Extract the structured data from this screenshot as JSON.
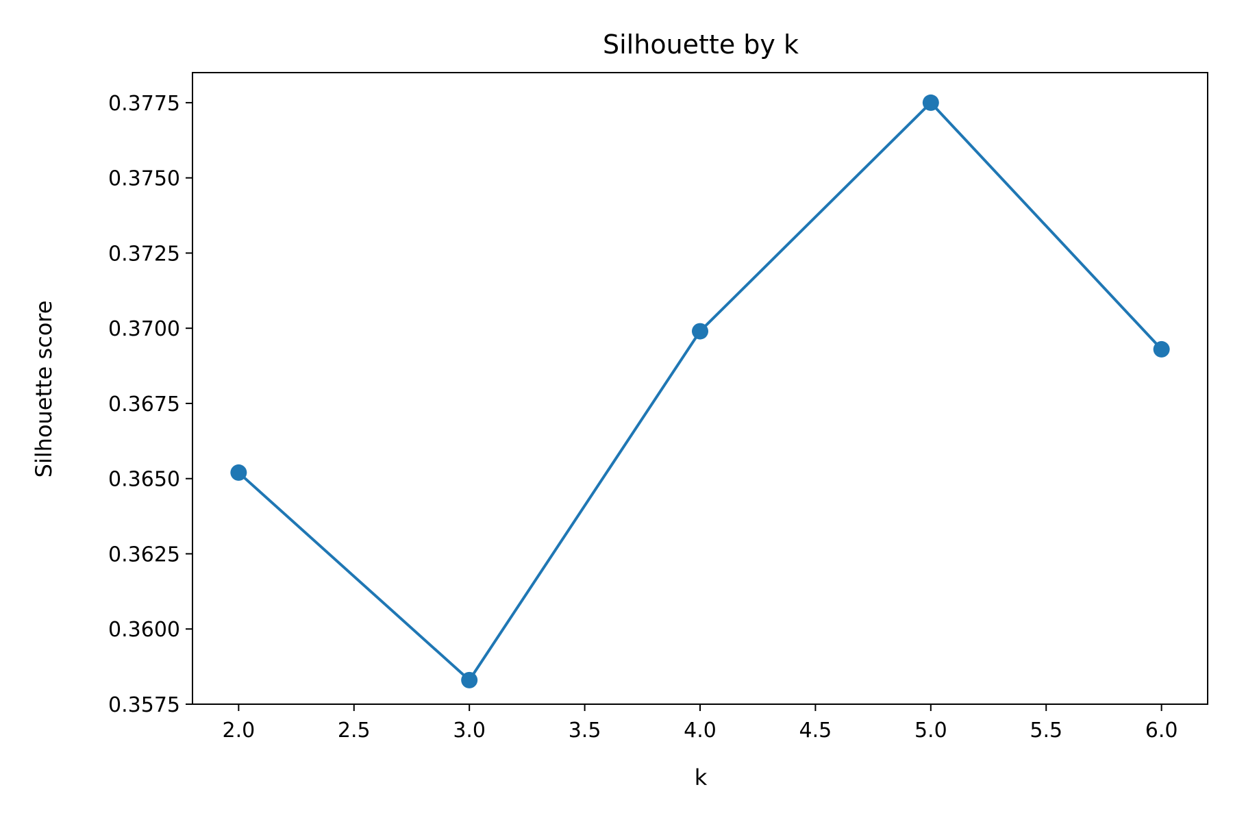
{
  "chart_data": {
    "type": "line",
    "title": "Silhouette by k",
    "xlabel": "k",
    "ylabel": "Silhouette score",
    "x": [
      2.0,
      3.0,
      4.0,
      5.0,
      6.0
    ],
    "series": [
      {
        "values": [
          0.3652,
          0.3583,
          0.3699,
          0.3775,
          0.3693
        ]
      }
    ],
    "xlim": [
      1.8,
      6.2
    ],
    "ylim": [
      0.3575,
      0.3785
    ],
    "xticks": [
      2.0,
      2.5,
      3.0,
      3.5,
      4.0,
      4.5,
      5.0,
      5.5,
      6.0
    ],
    "xtick_labels": [
      "2.0",
      "2.5",
      "3.0",
      "3.5",
      "4.0",
      "4.5",
      "5.0",
      "5.5",
      "6.0"
    ],
    "yticks": [
      0.3575,
      0.36,
      0.3625,
      0.365,
      0.3675,
      0.37,
      0.3725,
      0.375,
      0.3775
    ],
    "ytick_labels": [
      "0.3575",
      "0.3600",
      "0.3625",
      "0.3650",
      "0.3675",
      "0.3700",
      "0.3725",
      "0.3750",
      "0.3775"
    ],
    "grid": false,
    "colors": {
      "series": "#1f77b4"
    }
  }
}
